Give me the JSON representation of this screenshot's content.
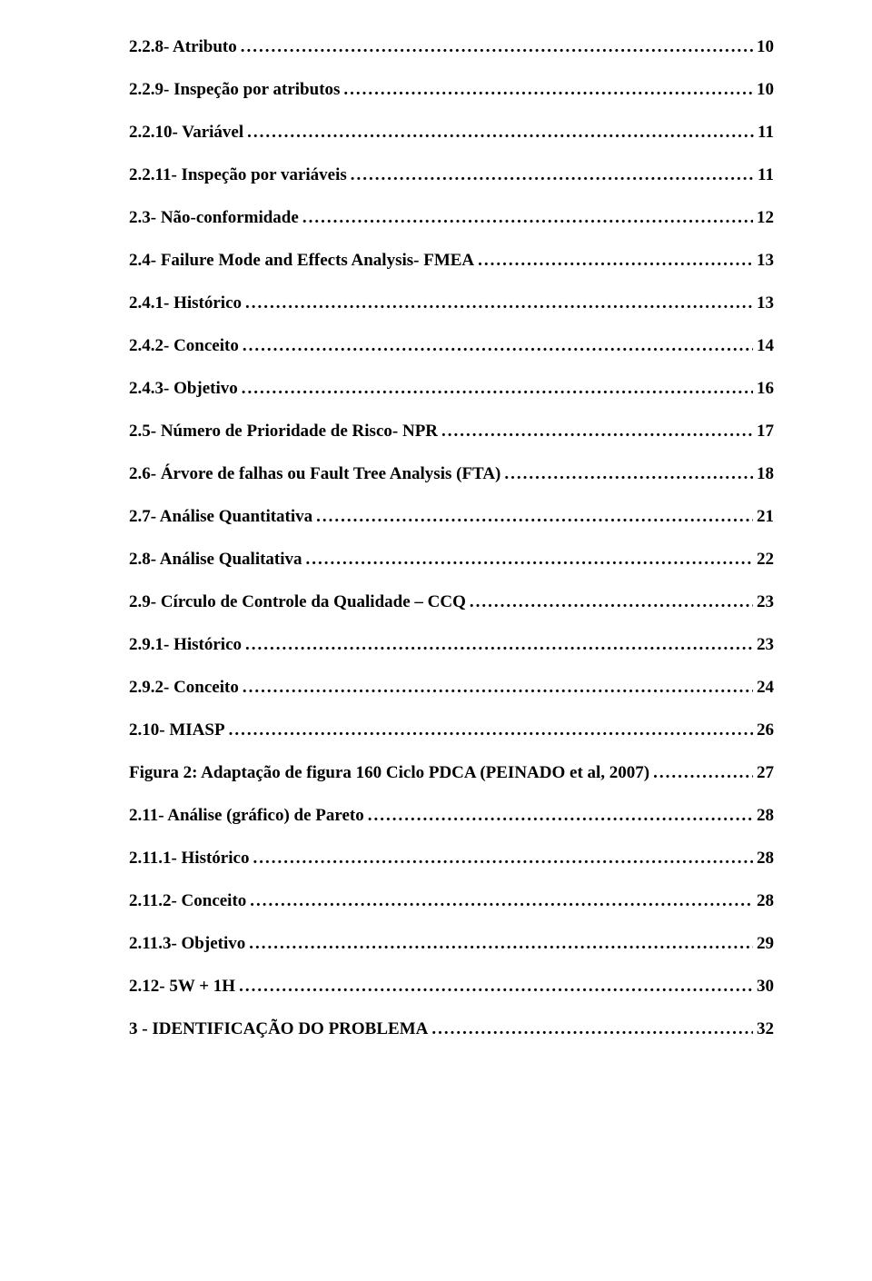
{
  "text_color": "#000000",
  "background_color": "#ffffff",
  "font_family": "Times New Roman",
  "font_size_pt": 14,
  "font_weight": "bold",
  "entries": [
    {
      "label": "2.2.8- Atributo",
      "page": "10"
    },
    {
      "label": "2.2.9- Inspeção por atributos",
      "page": "10"
    },
    {
      "label": "2.2.10- Variável",
      "page": "11"
    },
    {
      "label": "2.2.11- Inspeção por variáveis",
      "page": "11"
    },
    {
      "label": "2.3- Não-conformidade",
      "page": "12"
    },
    {
      "label": "2.4- Failure Mode and Effects Analysis- FMEA",
      "page": "13"
    },
    {
      "label": "2.4.1- Histórico",
      "page": "13"
    },
    {
      "label": "2.4.2- Conceito",
      "page": "14"
    },
    {
      "label": "2.4.3- Objetivo",
      "page": "16"
    },
    {
      "label": "2.5- Número de Prioridade de Risco- NPR",
      "page": "17"
    },
    {
      "label": "2.6- Árvore de falhas ou Fault Tree Analysis (FTA)",
      "page": "18"
    },
    {
      "label": "2.7- Análise Quantitativa",
      "page": "21"
    },
    {
      "label": "2.8- Análise Qualitativa",
      "page": "22"
    },
    {
      "label": "2.9- Círculo de Controle da Qualidade – CCQ",
      "page": "23"
    },
    {
      "label": "2.9.1- Histórico",
      "page": "23"
    },
    {
      "label": "2.9.2- Conceito",
      "page": "24"
    },
    {
      "label": "2.10- MIASP",
      "page": "26"
    },
    {
      "label": "Figura 2: Adaptação de figura 160 Ciclo PDCA (PEINADO et al, 2007)",
      "page": "27"
    },
    {
      "label": "2.11- Análise (gráfico) de Pareto",
      "page": "28"
    },
    {
      "label": "2.11.1- Histórico",
      "page": "28"
    },
    {
      "label": "2.11.2- Conceito",
      "page": "28"
    },
    {
      "label": "2.11.3- Objetivo",
      "page": "29"
    },
    {
      "label": "2.12- 5W + 1H",
      "page": "30"
    },
    {
      "label": "3 - IDENTIFICAÇÃO DO PROBLEMA",
      "page": "32"
    }
  ]
}
